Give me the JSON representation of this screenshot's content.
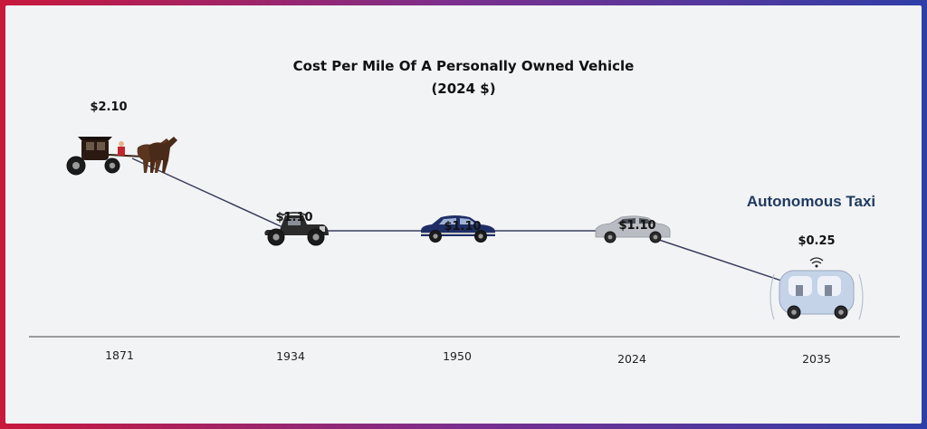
{
  "chart_data": {
    "type": "line",
    "title": "Cost Per Mile Of A Personally Owned Vehicle",
    "subtitle": "(2024 $)",
    "categories": [
      "1871",
      "1934",
      "1950",
      "2024",
      "2035"
    ],
    "values": [
      2.1,
      1.1,
      1.1,
      1.1,
      0.25
    ],
    "data_labels": [
      "$2.10",
      "$1.10",
      "$1.10",
      "$1.10",
      "$0.25"
    ],
    "point_icons": [
      "horse-carriage-icon",
      "vintage-car-icon",
      "classic-sedan-icon",
      "modern-sedan-icon",
      "autonomous-taxi-icon"
    ],
    "annotation": "Autonomous Taxi",
    "ylim": [
      0,
      2.5
    ],
    "grid": false,
    "colors": {
      "line": "#3a3f5c",
      "axis": "#444444",
      "carriage": "#2a1a12",
      "horse": "#5a3520",
      "vintage_car": "#2b2b2b",
      "classic_sedan": "#1f2f66",
      "modern_sedan": "#b9bcc2",
      "taxi": "#c5d3e8",
      "annotation": "#1f3a5f"
    }
  }
}
